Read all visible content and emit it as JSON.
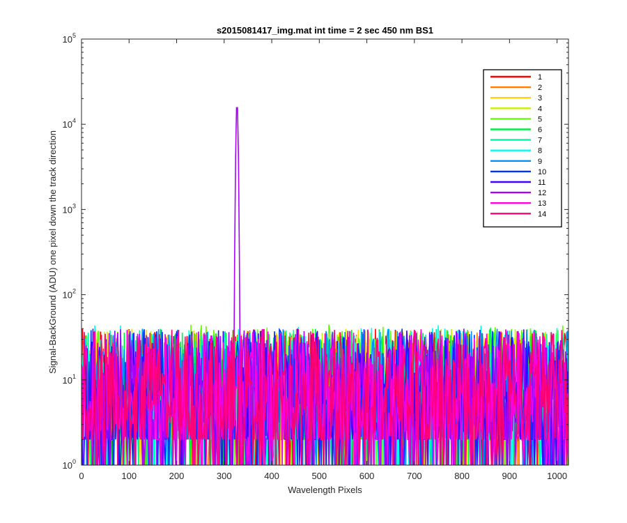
{
  "chart_data": {
    "type": "line",
    "title": "s2015081417_img.mat int time = 2 sec  450 nm BS1",
    "xlabel": "Wavelength Pixels",
    "ylabel": "Signal-BackGround (ADU) one pixel down the track direction",
    "xlim": [
      0,
      1024
    ],
    "ylim": [
      1,
      100000
    ],
    "yscale": "log",
    "grid": false,
    "legend_position": "top-right",
    "xticks": [
      0,
      100,
      200,
      300,
      400,
      500,
      600,
      700,
      800,
      900,
      1000
    ],
    "xtick_labels": [
      "0",
      "100",
      "200",
      "300",
      "400",
      "500",
      "600",
      "700",
      "800",
      "900",
      "1000"
    ],
    "yticks": [
      1,
      10,
      100,
      1000,
      10000,
      100000
    ],
    "ytick_labels": [
      {
        "base": "10",
        "exp": "0"
      },
      {
        "base": "10",
        "exp": "1"
      },
      {
        "base": "10",
        "exp": "2"
      },
      {
        "base": "10",
        "exp": "3"
      },
      {
        "base": "10",
        "exp": "4"
      },
      {
        "base": "10",
        "exp": "5"
      }
    ],
    "series": [
      {
        "name": "1",
        "color": "#ff0000",
        "noise_range": [
          1,
          40
        ]
      },
      {
        "name": "2",
        "color": "#ff7f00",
        "noise_range": [
          1,
          40
        ]
      },
      {
        "name": "3",
        "color": "#ffd700",
        "noise_range": [
          1,
          40
        ]
      },
      {
        "name": "4",
        "color": "#c8f000",
        "noise_range": [
          1,
          40
        ]
      },
      {
        "name": "5",
        "color": "#66ff00",
        "noise_range": [
          1,
          45
        ]
      },
      {
        "name": "6",
        "color": "#00ee44",
        "noise_range": [
          1,
          40
        ]
      },
      {
        "name": "7",
        "color": "#00f5a0",
        "noise_range": [
          1,
          40
        ]
      },
      {
        "name": "8",
        "color": "#00ffee",
        "noise_range": [
          1,
          45
        ]
      },
      {
        "name": "9",
        "color": "#0090ff",
        "noise_range": [
          1,
          40
        ]
      },
      {
        "name": "10",
        "color": "#0033ff",
        "noise_range": [
          1,
          40
        ]
      },
      {
        "name": "11",
        "color": "#4400ff",
        "noise_range": [
          1,
          40
        ]
      },
      {
        "name": "12",
        "color": "#aa00ff",
        "noise_range": [
          1,
          40
        ],
        "peak": {
          "x": 327,
          "y": 18500
        }
      },
      {
        "name": "13",
        "color": "#ff00dd",
        "noise_range": [
          1,
          40
        ]
      },
      {
        "name": "14",
        "color": "#ff0077",
        "noise_range": [
          1,
          40
        ]
      }
    ]
  }
}
